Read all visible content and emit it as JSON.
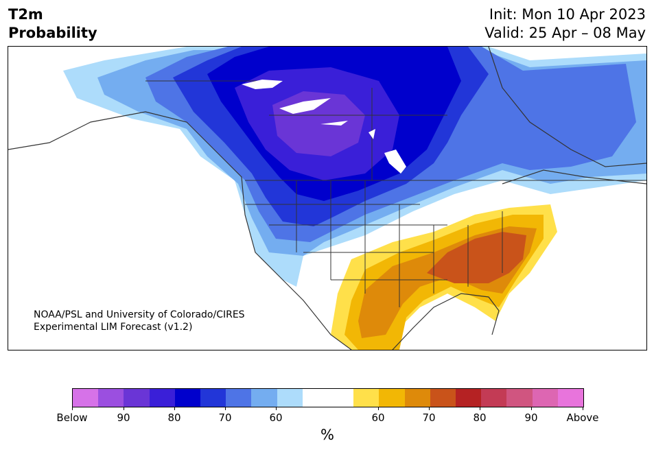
{
  "header": {
    "title_line1": "T2m",
    "title_line2": "Probability",
    "init_text": "Init: Mon 10 Apr 2023",
    "valid_text": "Valid: 25 Apr – 08 May"
  },
  "credit": {
    "line1": "NOAA/PSL and University of Colorado/CIRES",
    "line2": "Experimental LIM Forecast (v1.2)"
  },
  "colorbar": {
    "unit": "%",
    "colors": [
      "#d672e8",
      "#9b4fe0",
      "#6a35d6",
      "#3a1fd8",
      "#0000cc",
      "#2236d8",
      "#4e74e6",
      "#74adf0",
      "#addcfb",
      "#ffffff",
      "#ffffff",
      "#ffe04a",
      "#f2b705",
      "#de8a0a",
      "#c9531a",
      "#b52223",
      "#c33b55",
      "#d05580",
      "#dd66b2",
      "#e874dc"
    ],
    "tick_labels": [
      "Below",
      "90",
      "80",
      "70",
      "60",
      "60",
      "70",
      "80",
      "90",
      "Above"
    ]
  },
  "legend_scale": {
    "below_colors": [
      "#d672e8",
      "#9b4fe0",
      "#6a35d6",
      "#3a1fd8",
      "#0000cc",
      "#2236d8",
      "#4e74e6",
      "#74adf0",
      "#addcfb"
    ],
    "above_colors": [
      "#ffe04a",
      "#f2b705",
      "#de8a0a",
      "#c9531a",
      "#b52223",
      "#c33b55",
      "#d05580",
      "#dd66b2",
      "#e874dc"
    ]
  }
}
